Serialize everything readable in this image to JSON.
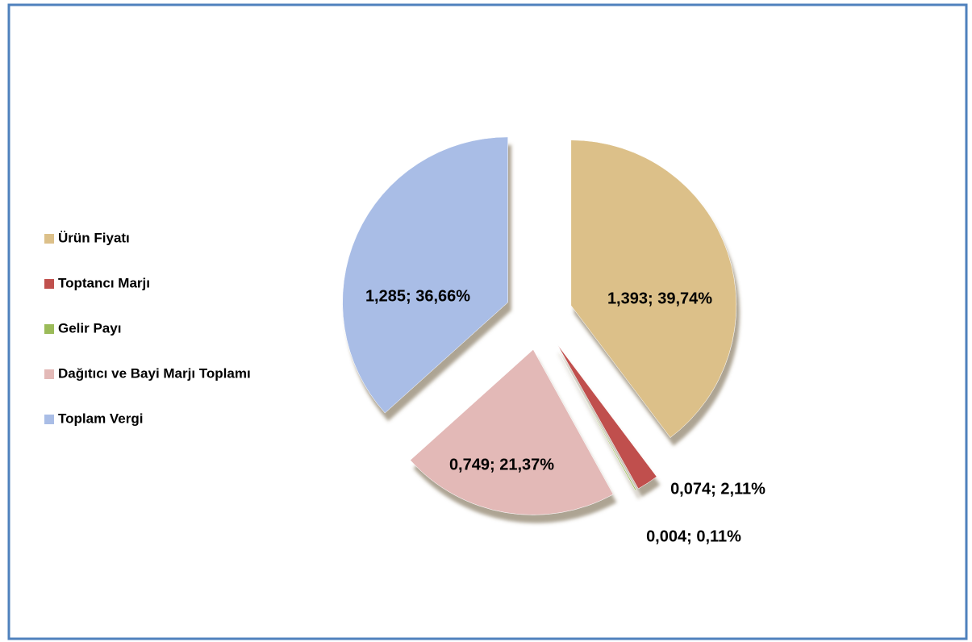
{
  "chart_data": {
    "type": "pie",
    "categories": [
      "Ürün Fiyatı",
      "Toptancı Marjı",
      "Gelir Payı",
      "Dağıtıcı ve Bayi Marjı Toplamı",
      "Toplam Vergi"
    ],
    "values": [
      1.393,
      0.074,
      0.004,
      0.749,
      1.285
    ],
    "value_labels": [
      "1,393; 39,74%",
      "0,074; 2,11%",
      "0,004; 0,11%",
      "0,749; 21,37%",
      "1,285; 36,66%"
    ],
    "colors": [
      "#dcc089",
      "#c0504d",
      "#9bbb59",
      "#e3b9b7",
      "#a9bde6"
    ],
    "legend": "left"
  }
}
